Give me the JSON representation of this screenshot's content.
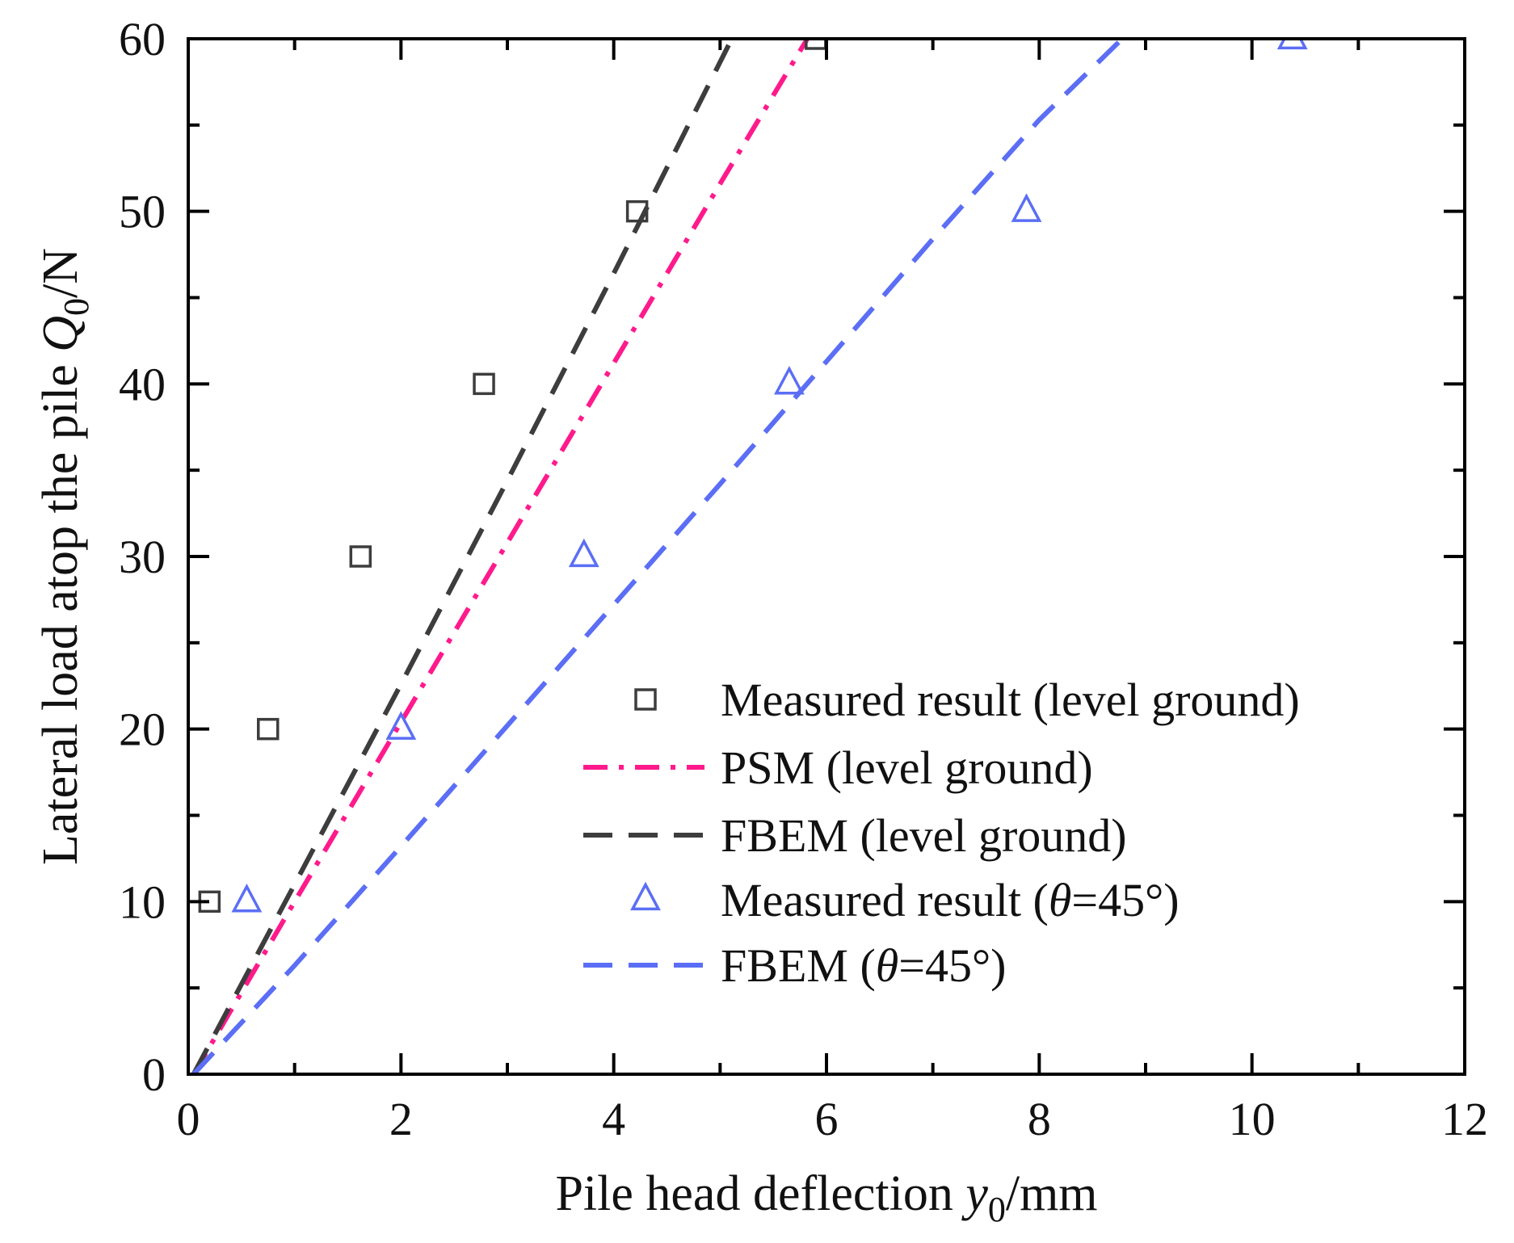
{
  "chart_data": {
    "type": "scatter",
    "title": "",
    "xlabel": {
      "prefix": "Pile head deflection ",
      "var": "y",
      "sub": "0",
      "suffix": "/mm"
    },
    "ylabel": {
      "prefix": "Lateral load atop the pile ",
      "var": "Q",
      "sub": "0",
      "suffix": "/N"
    },
    "xlim": [
      0,
      12
    ],
    "ylim": [
      0,
      60
    ],
    "xticks": [
      0,
      2,
      4,
      6,
      8,
      10,
      12
    ],
    "yticks": [
      0,
      10,
      20,
      30,
      40,
      50,
      60
    ],
    "xtick_labels": [
      "0",
      "2",
      "4",
      "6",
      "8",
      "10",
      "12"
    ],
    "ytick_labels": [
      "0",
      "10",
      "20",
      "30",
      "40",
      "50",
      "60"
    ],
    "grid": false,
    "legend_position": "bottom-right",
    "series": [
      {
        "name": "Measured result (level ground)",
        "legend": {
          "prefix": "Measured result (level ground)",
          "var": "",
          "suffix": ""
        },
        "kind": "scatter",
        "marker": "square",
        "color": "#3d3d3d",
        "x": [
          0.2,
          0.75,
          1.62,
          2.78,
          4.22,
          5.9
        ],
        "y": [
          10,
          20,
          30,
          40,
          50,
          60
        ]
      },
      {
        "name": "PSM (level ground)",
        "legend": {
          "prefix": "PSM (level ground)",
          "var": "",
          "suffix": ""
        },
        "kind": "line",
        "dash": "dashdot",
        "color": "#ff1a8c",
        "x": [
          0.05,
          1.0,
          2.0,
          3.0,
          4.0,
          5.0,
          5.82
        ],
        "y": [
          0,
          10.0,
          20.4,
          30.8,
          41.2,
          51.6,
          60
        ]
      },
      {
        "name": "FBEM (level ground)",
        "legend": {
          "prefix": "FBEM (level ground)",
          "var": "",
          "suffix": ""
        },
        "kind": "line",
        "dash": "dash",
        "color": "#3d3d3d",
        "x": [
          0.05,
          1.0,
          2.0,
          3.0,
          4.0,
          5.11
        ],
        "y": [
          0,
          11.0,
          22.6,
          34.4,
          46.4,
          60
        ]
      },
      {
        "name": "Measured result (θ=45°)",
        "legend": {
          "prefix": "Measured result (",
          "var": "θ",
          "suffix": "=45°)"
        },
        "kind": "scatter",
        "marker": "triangle",
        "color": "#5b6ef5",
        "x": [
          0.55,
          2.0,
          3.72,
          5.65,
          7.88,
          10.38
        ],
        "y": [
          10,
          20,
          30,
          40,
          50,
          60
        ]
      },
      {
        "name": "FBEM (θ=45°)",
        "legend": {
          "prefix": "FBEM (",
          "var": "θ",
          "suffix": "=45°)"
        },
        "kind": "line",
        "dash": "dash",
        "color": "#5b6ef5",
        "x": [
          0.05,
          1.0,
          2.0,
          3.0,
          4.0,
          5.0,
          6.0,
          7.0,
          8.0,
          8.78
        ],
        "y": [
          0,
          6.3,
          13.2,
          20.2,
          27.2,
          34.2,
          41.3,
          48.4,
          55.3,
          60
        ]
      }
    ]
  }
}
